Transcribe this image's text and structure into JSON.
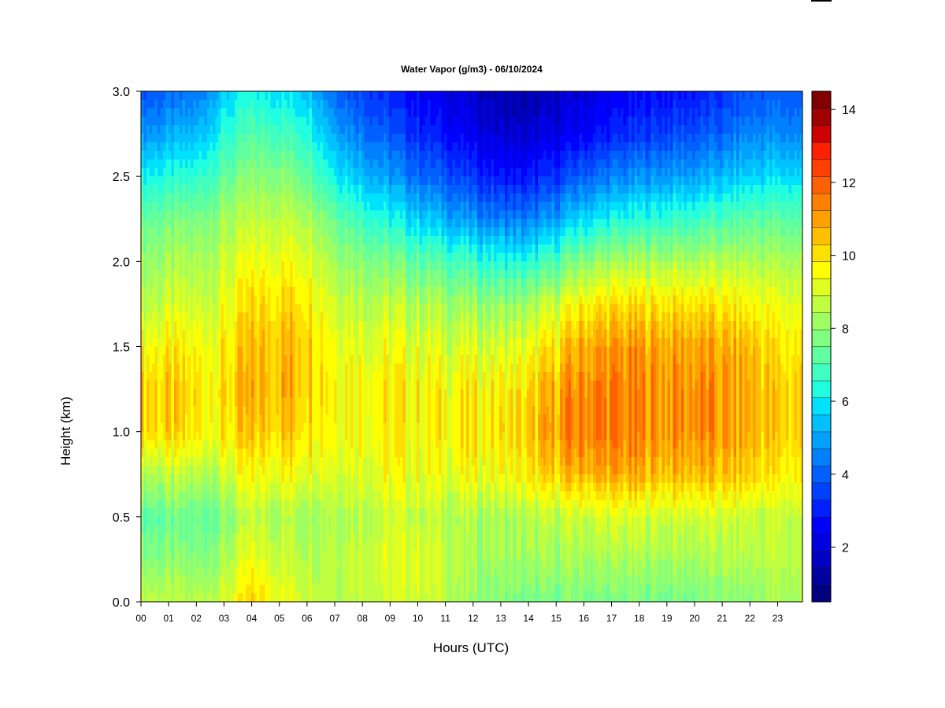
{
  "chart_data": {
    "type": "heatmap",
    "title": "Water Vapor (g/m3) - 06/10/2024",
    "xlabel": "Hours (UTC)",
    "ylabel": "Height (km)",
    "x_ticks": [
      "00",
      "01",
      "02",
      "03",
      "04",
      "05",
      "06",
      "07",
      "08",
      "09",
      "10",
      "11",
      "12",
      "13",
      "14",
      "15",
      "16",
      "17",
      "18",
      "19",
      "20",
      "21",
      "22",
      "23"
    ],
    "xlim": [
      0,
      23.9
    ],
    "y_ticks": [
      "0.0",
      "0.5",
      "1.0",
      "1.5",
      "2.0",
      "2.5",
      "3.0"
    ],
    "ylim": [
      0,
      3
    ],
    "colorbar": {
      "ticks": [
        "2",
        "4",
        "6",
        "8",
        "10",
        "12",
        "14"
      ],
      "range": [
        0.5,
        14.5
      ],
      "levels": 28,
      "colors": [
        "#00007F",
        "#0000A0",
        "#0000C0",
        "#0000E0",
        "#0000FF",
        "#0020FF",
        "#0040FF",
        "#0060FF",
        "#0080FF",
        "#00A0FF",
        "#00C0FF",
        "#00E0FF",
        "#20FFE0",
        "#40FFC0",
        "#60FF9F",
        "#80FF80",
        "#A0FF60",
        "#C0FF40",
        "#E0FF20",
        "#FFFF00",
        "#FFE000",
        "#FFC000",
        "#FFA000",
        "#FF8000",
        "#FF6000",
        "#FF4000",
        "#FF2000",
        "#CC0000",
        "#A00000",
        "#800000"
      ]
    },
    "moisture_profile": {
      "description_heights_km": [
        0.0,
        0.25,
        0.5,
        0.75,
        1.0,
        1.25,
        1.5,
        1.75,
        2.0,
        2.25,
        2.5,
        2.75,
        3.0
      ],
      "hours": [
        0,
        1,
        2,
        3,
        4,
        5,
        6,
        7,
        8,
        9,
        10,
        11,
        12,
        13,
        14,
        15,
        16,
        17,
        18,
        19,
        20,
        21,
        22,
        23
      ],
      "values": [
        [
          8.8,
          7.9,
          7.3,
          8.6,
          10.3,
          10.4,
          9.6,
          8.7,
          8.1,
          7.4,
          6.2,
          4.8,
          3.8
        ],
        [
          8.6,
          7.8,
          7.3,
          8.5,
          10.0,
          10.2,
          9.6,
          8.8,
          8.2,
          7.5,
          6.3,
          5.0,
          4.0
        ],
        [
          8.5,
          7.8,
          7.3,
          8.5,
          9.8,
          9.9,
          9.5,
          8.8,
          8.3,
          7.6,
          6.5,
          5.3,
          4.3
        ],
        [
          8.9,
          8.3,
          7.8,
          8.8,
          9.8,
          10.0,
          9.7,
          9.2,
          8.8,
          8.2,
          7.3,
          6.4,
          5.6
        ],
        [
          10.2,
          9.3,
          8.6,
          9.4,
          10.3,
          10.6,
          10.4,
          10.0,
          9.3,
          8.6,
          7.8,
          7.0,
          6.2
        ],
        [
          9.4,
          8.9,
          8.5,
          9.6,
          10.5,
          10.8,
          10.7,
          10.2,
          9.5,
          8.7,
          7.9,
          6.9,
          6.0
        ],
        [
          9.0,
          8.7,
          8.4,
          9.5,
          10.3,
          10.6,
          10.6,
          10.1,
          9.4,
          8.6,
          7.5,
          6.6,
          5.6
        ],
        [
          8.6,
          8.7,
          8.6,
          9.3,
          9.8,
          9.9,
          9.6,
          9.1,
          8.4,
          7.5,
          6.2,
          5.2,
          4.2
        ],
        [
          8.8,
          8.9,
          8.7,
          9.3,
          9.7,
          9.8,
          9.4,
          8.8,
          8.0,
          6.8,
          5.5,
          4.4,
          3.6
        ],
        [
          8.9,
          9.1,
          8.8,
          9.4,
          9.6,
          9.7,
          9.3,
          8.6,
          7.6,
          6.2,
          4.8,
          3.8,
          3.0
        ],
        [
          9.0,
          9.2,
          8.8,
          9.4,
          9.6,
          9.7,
          9.2,
          8.5,
          7.3,
          5.7,
          4.2,
          3.2,
          2.6
        ],
        [
          8.6,
          8.8,
          8.5,
          9.3,
          9.7,
          9.6,
          9.0,
          8.3,
          7.0,
          5.2,
          3.8,
          2.8,
          2.2
        ],
        [
          8.0,
          8.3,
          8.4,
          9.4,
          9.9,
          9.7,
          9.0,
          8.1,
          6.7,
          4.7,
          3.3,
          2.3,
          1.8
        ],
        [
          7.8,
          8.2,
          8.3,
          9.4,
          9.9,
          9.7,
          9.0,
          8.0,
          6.4,
          4.4,
          2.9,
          1.9,
          1.4
        ],
        [
          7.5,
          8.1,
          8.4,
          9.7,
          10.2,
          9.9,
          9.2,
          8.1,
          6.3,
          4.3,
          2.8,
          1.8,
          1.3
        ],
        [
          7.6,
          8.2,
          8.6,
          10.3,
          11.0,
          10.8,
          10.0,
          8.9,
          7.0,
          5.0,
          3.3,
          2.2,
          1.7
        ],
        [
          7.7,
          8.3,
          8.9,
          10.8,
          11.6,
          11.4,
          10.9,
          9.8,
          7.9,
          5.8,
          4.0,
          2.6,
          2.0
        ],
        [
          7.6,
          8.3,
          9.0,
          10.8,
          11.5,
          11.4,
          11.0,
          10.0,
          8.2,
          6.2,
          4.4,
          3.0,
          2.3
        ],
        [
          7.6,
          8.3,
          8.9,
          10.7,
          11.3,
          11.3,
          11.0,
          10.0,
          8.3,
          6.4,
          4.7,
          3.3,
          2.6
        ],
        [
          7.6,
          8.3,
          8.9,
          10.6,
          11.2,
          11.2,
          10.9,
          10.0,
          8.4,
          6.6,
          4.9,
          3.6,
          2.8
        ],
        [
          7.6,
          8.3,
          8.9,
          10.6,
          11.3,
          11.3,
          11.0,
          10.0,
          8.4,
          6.7,
          5.0,
          3.7,
          2.9
        ],
        [
          7.7,
          8.4,
          8.8,
          10.4,
          11.0,
          11.0,
          10.7,
          9.8,
          8.4,
          6.9,
          5.3,
          4.0,
          3.2
        ],
        [
          7.9,
          8.5,
          8.8,
          10.3,
          10.8,
          10.8,
          10.6,
          9.7,
          8.5,
          7.2,
          5.7,
          4.6,
          3.8
        ],
        [
          8.3,
          8.6,
          8.7,
          9.8,
          10.2,
          10.2,
          9.9,
          9.2,
          8.4,
          7.2,
          5.8,
          4.6,
          3.9
        ]
      ]
    }
  }
}
